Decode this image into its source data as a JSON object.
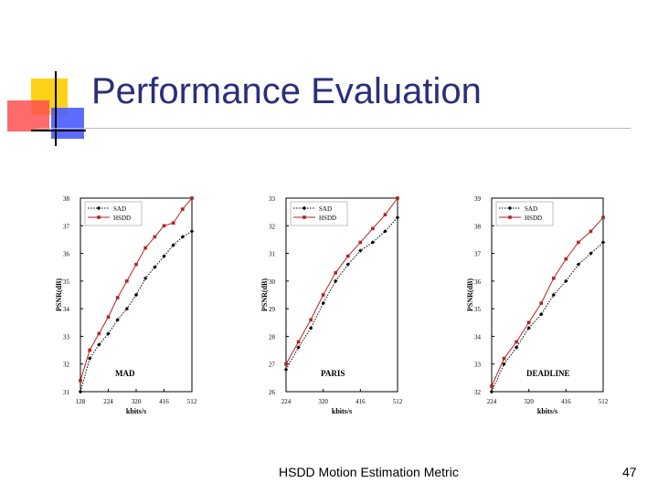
{
  "slide": {
    "title": "Performance Evaluation",
    "footer": "HSDD Motion Estimation Metric",
    "page_number": "47",
    "colors": {
      "title": "#2b2f7a",
      "deco_yellow": "#ffd21a",
      "deco_red": "#ff3030",
      "deco_blue": "#4a5cff"
    }
  },
  "chart_data": [
    {
      "type": "line",
      "title": "MAD",
      "xlabel": "kbits/s",
      "ylabel": "PSNR(dB)",
      "xlim": [
        128,
        512
      ],
      "ylim": [
        31,
        38
      ],
      "xticks": [
        128,
        224,
        320,
        416,
        512
      ],
      "yticks": [
        31,
        32,
        33,
        34,
        35,
        36,
        37,
        38
      ],
      "legend": "top-left",
      "series": [
        {
          "name": "SAD",
          "style": "dotted",
          "marker": "diamond",
          "color": "#000000",
          "x": [
            128,
            160,
            192,
            224,
            256,
            288,
            320,
            352,
            384,
            416,
            448,
            480,
            512
          ],
          "y": [
            31.0,
            32.2,
            32.7,
            33.1,
            33.6,
            34.0,
            34.5,
            35.1,
            35.5,
            35.9,
            36.3,
            36.6,
            36.8
          ]
        },
        {
          "name": "HSDD",
          "style": "solid",
          "marker": "square",
          "color": "#b22222",
          "x": [
            128,
            160,
            192,
            224,
            256,
            288,
            320,
            352,
            384,
            416,
            448,
            480,
            512
          ],
          "y": [
            31.4,
            32.5,
            33.1,
            33.7,
            34.4,
            35.0,
            35.6,
            36.2,
            36.6,
            37.0,
            37.1,
            37.6,
            38.0
          ]
        }
      ]
    },
    {
      "type": "line",
      "title": "PARIS",
      "xlabel": "kbits/s",
      "ylabel": "PSNR(dB)",
      "xlim": [
        224,
        512
      ],
      "ylim": [
        26,
        33
      ],
      "xticks": [
        224,
        320,
        416,
        512
      ],
      "yticks": [
        26,
        27,
        28,
        29,
        30,
        31,
        32,
        33
      ],
      "legend": "top-left",
      "series": [
        {
          "name": "SAD",
          "style": "dotted",
          "marker": "diamond",
          "color": "#000000",
          "x": [
            224,
            256,
            288,
            320,
            352,
            384,
            416,
            448,
            480,
            512
          ],
          "y": [
            26.8,
            27.6,
            28.3,
            29.2,
            30.0,
            30.6,
            31.1,
            31.4,
            31.8,
            32.3
          ]
        },
        {
          "name": "HSDD",
          "style": "solid",
          "marker": "square",
          "color": "#b22222",
          "x": [
            224,
            256,
            288,
            320,
            352,
            384,
            416,
            448,
            480,
            512
          ],
          "y": [
            27.0,
            27.8,
            28.6,
            29.5,
            30.3,
            30.9,
            31.4,
            31.9,
            32.4,
            33.0
          ]
        }
      ]
    },
    {
      "type": "line",
      "title": "DEADLINE",
      "xlabel": "kbits/s",
      "ylabel": "PSNR(dB)",
      "xlim": [
        224,
        512
      ],
      "ylim": [
        32,
        39
      ],
      "xticks": [
        224,
        320,
        416,
        512
      ],
      "yticks": [
        32,
        33,
        34,
        35,
        36,
        37,
        38,
        39
      ],
      "legend": "top-left",
      "series": [
        {
          "name": "SAD",
          "style": "dotted",
          "marker": "diamond",
          "color": "#000000",
          "x": [
            224,
            256,
            288,
            320,
            352,
            384,
            416,
            448,
            480,
            512
          ],
          "y": [
            32.0,
            33.0,
            33.6,
            34.3,
            34.8,
            35.5,
            36.0,
            36.6,
            37.0,
            37.4
          ]
        },
        {
          "name": "HSDD",
          "style": "solid",
          "marker": "square",
          "color": "#b22222",
          "x": [
            224,
            256,
            288,
            320,
            352,
            384,
            416,
            448,
            480,
            512
          ],
          "y": [
            32.2,
            33.2,
            33.8,
            34.5,
            35.2,
            36.1,
            36.8,
            37.4,
            37.8,
            38.3
          ]
        }
      ]
    }
  ]
}
